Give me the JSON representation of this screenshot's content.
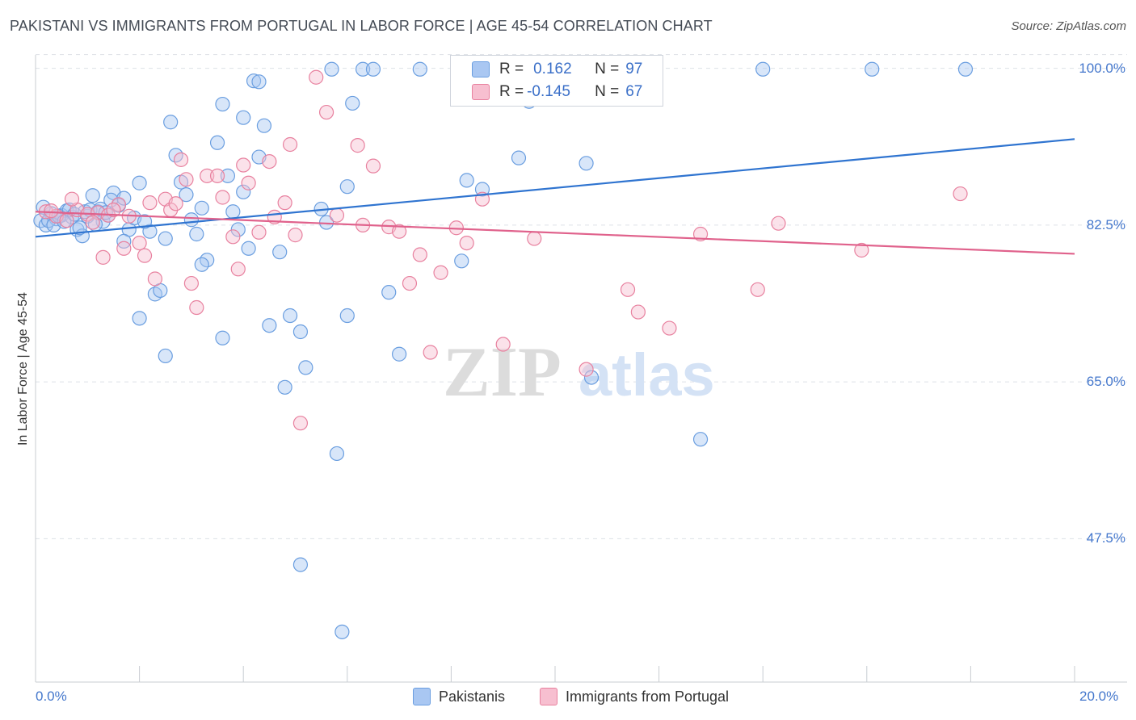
{
  "title": "PAKISTANI VS IMMIGRANTS FROM PORTUGAL IN LABOR FORCE | AGE 45-54 CORRELATION CHART",
  "source": "Source: ZipAtlas.com",
  "watermark": {
    "zip": "ZIP",
    "atlas": "atlas"
  },
  "legend": {
    "r_label": "R =",
    "n_label": "N =",
    "rows": [
      {
        "r": "0.162",
        "n": "97",
        "color": "#a9c7f2",
        "stroke": "#6a9ee0"
      },
      {
        "r": "-0.145",
        "n": "67",
        "color": "#f7bfd0",
        "stroke": "#e8819f"
      }
    ]
  },
  "chart_data": {
    "type": "scatter",
    "title": "PAKISTANI VS IMMIGRANTS FROM PORTUGAL IN LABOR FORCE | AGE 45-54 CORRELATION CHART",
    "xlabel": "",
    "ylabel": "In Labor Force | Age 45-54",
    "xlim": [
      0,
      20
    ],
    "ylim": [
      31.5,
      101.5
    ],
    "x_tick_labels": [
      "0.0%",
      "20.0%"
    ],
    "y_ticks": [
      100,
      82.5,
      65,
      47.5
    ],
    "y_tick_labels": [
      "100.0%",
      "82.5%",
      "65.0%",
      "47.5%"
    ],
    "grid": true,
    "legend_position": "top-center",
    "series": [
      {
        "name": "Pakistanis",
        "color": "#6a9ee0",
        "fill": "#a9c7f2",
        "trend": {
          "x": [
            0,
            20
          ],
          "y": [
            81.2,
            92.1
          ]
        },
        "points": [
          [
            0.1,
            83.0
          ],
          [
            0.2,
            82.5
          ],
          [
            0.3,
            83.8
          ],
          [
            0.4,
            83.2
          ],
          [
            0.5,
            83.6
          ],
          [
            0.6,
            84.1
          ],
          [
            0.7,
            83.4
          ],
          [
            0.8,
            82.0
          ],
          [
            0.9,
            81.3
          ],
          [
            1.0,
            83.5
          ],
          [
            1.1,
            85.8
          ],
          [
            1.2,
            84.0
          ],
          [
            1.3,
            82.9
          ],
          [
            1.4,
            83.6
          ],
          [
            1.5,
            86.1
          ],
          [
            1.6,
            84.7
          ],
          [
            1.7,
            85.5
          ],
          [
            1.8,
            82.0
          ],
          [
            1.9,
            83.3
          ],
          [
            2.0,
            87.2
          ],
          [
            2.2,
            81.8
          ],
          [
            2.3,
            74.8
          ],
          [
            2.4,
            75.2
          ],
          [
            2.5,
            81.0
          ],
          [
            2.6,
            94.0
          ],
          [
            2.7,
            90.3
          ],
          [
            2.8,
            87.3
          ],
          [
            2.9,
            85.9
          ],
          [
            3.0,
            83.1
          ],
          [
            3.1,
            81.5
          ],
          [
            3.2,
            84.4
          ],
          [
            3.3,
            78.6
          ],
          [
            3.5,
            91.7
          ],
          [
            3.6,
            69.9
          ],
          [
            3.8,
            84.0
          ],
          [
            3.9,
            82.0
          ],
          [
            4.0,
            94.5
          ],
          [
            4.1,
            79.9
          ],
          [
            4.2,
            98.6
          ],
          [
            4.3,
            98.5
          ],
          [
            4.4,
            93.6
          ],
          [
            4.5,
            71.3
          ],
          [
            4.7,
            79.5
          ],
          [
            4.8,
            64.4
          ],
          [
            4.9,
            72.4
          ],
          [
            5.1,
            70.6
          ],
          [
            5.2,
            66.6
          ],
          [
            5.5,
            84.3
          ],
          [
            5.6,
            82.8
          ],
          [
            5.8,
            57.0
          ],
          [
            6.0,
            86.8
          ],
          [
            6.1,
            96.1
          ],
          [
            6.3,
            99.9
          ],
          [
            6.5,
            99.9
          ],
          [
            6.8,
            75.0
          ],
          [
            7.0,
            68.1
          ],
          [
            7.4,
            99.9
          ],
          [
            8.2,
            78.5
          ],
          [
            8.3,
            87.5
          ],
          [
            8.6,
            86.5
          ],
          [
            9.3,
            90.0
          ],
          [
            9.5,
            96.3
          ],
          [
            10.0,
            99.9
          ],
          [
            10.6,
            89.4
          ],
          [
            11.2,
            99.9
          ],
          [
            14.0,
            99.9
          ],
          [
            16.1,
            99.9
          ],
          [
            17.9,
            99.9
          ],
          [
            5.1,
            44.6
          ],
          [
            5.9,
            37.1
          ],
          [
            10.7,
            65.5
          ],
          [
            12.8,
            58.6
          ],
          [
            2.0,
            72.1
          ],
          [
            2.5,
            67.9
          ],
          [
            3.2,
            78.1
          ],
          [
            4.0,
            86.2
          ],
          [
            0.15,
            84.5
          ],
          [
            0.25,
            83.0
          ],
          [
            0.35,
            82.5
          ],
          [
            0.45,
            83.5
          ],
          [
            0.55,
            82.9
          ],
          [
            0.65,
            84.2
          ],
          [
            0.75,
            83.7
          ],
          [
            0.85,
            82.2
          ],
          [
            0.95,
            84.0
          ],
          [
            1.05,
            84.2
          ],
          [
            1.15,
            82.6
          ],
          [
            1.25,
            84.3
          ],
          [
            1.35,
            83.9
          ],
          [
            1.45,
            85.3
          ],
          [
            3.6,
            96.0
          ],
          [
            3.7,
            88.0
          ],
          [
            5.7,
            99.9
          ],
          [
            6.0,
            72.4
          ],
          [
            1.7,
            80.7
          ],
          [
            2.1,
            82.9
          ],
          [
            4.3,
            90.1
          ]
        ]
      },
      {
        "name": "Immigrants from Portugal",
        "color": "#e8819f",
        "fill": "#f7bfd0",
        "trend": {
          "x": [
            0,
            20
          ],
          "y": [
            84.0,
            79.3
          ]
        },
        "points": [
          [
            0.2,
            84.0
          ],
          [
            0.4,
            83.5
          ],
          [
            0.6,
            83.0
          ],
          [
            0.8,
            84.2
          ],
          [
            1.0,
            83.7
          ],
          [
            1.2,
            83.9
          ],
          [
            1.3,
            78.9
          ],
          [
            1.4,
            83.6
          ],
          [
            1.6,
            84.8
          ],
          [
            1.7,
            79.9
          ],
          [
            1.8,
            83.5
          ],
          [
            2.0,
            80.5
          ],
          [
            2.1,
            79.1
          ],
          [
            2.2,
            85.0
          ],
          [
            2.3,
            76.5
          ],
          [
            2.5,
            85.4
          ],
          [
            2.6,
            84.2
          ],
          [
            2.8,
            89.8
          ],
          [
            2.9,
            87.6
          ],
          [
            3.1,
            73.3
          ],
          [
            3.3,
            88.0
          ],
          [
            3.5,
            88.0
          ],
          [
            3.6,
            85.6
          ],
          [
            3.8,
            81.2
          ],
          [
            3.9,
            77.6
          ],
          [
            4.0,
            89.2
          ],
          [
            4.1,
            87.2
          ],
          [
            4.3,
            81.7
          ],
          [
            4.5,
            89.6
          ],
          [
            4.6,
            83.4
          ],
          [
            4.8,
            85.0
          ],
          [
            4.9,
            91.5
          ],
          [
            5.0,
            81.4
          ],
          [
            5.1,
            60.4
          ],
          [
            5.4,
            99.0
          ],
          [
            5.6,
            95.1
          ],
          [
            5.8,
            83.6
          ],
          [
            6.2,
            91.4
          ],
          [
            6.3,
            82.5
          ],
          [
            6.5,
            89.1
          ],
          [
            6.8,
            82.3
          ],
          [
            7.0,
            81.8
          ],
          [
            7.2,
            76.0
          ],
          [
            7.4,
            79.2
          ],
          [
            7.6,
            68.3
          ],
          [
            7.8,
            77.2
          ],
          [
            8.1,
            82.2
          ],
          [
            8.3,
            80.5
          ],
          [
            8.6,
            85.4
          ],
          [
            9.0,
            69.2
          ],
          [
            9.6,
            81.0
          ],
          [
            10.0,
            99.9
          ],
          [
            10.6,
            66.4
          ],
          [
            11.4,
            75.3
          ],
          [
            11.6,
            72.8
          ],
          [
            12.2,
            71.0
          ],
          [
            12.8,
            81.5
          ],
          [
            13.9,
            75.3
          ],
          [
            14.3,
            82.7
          ],
          [
            15.9,
            79.7
          ],
          [
            17.8,
            86.0
          ],
          [
            0.3,
            84.1
          ],
          [
            0.7,
            85.4
          ],
          [
            1.1,
            82.8
          ],
          [
            1.5,
            84.2
          ],
          [
            2.7,
            84.9
          ],
          [
            3.0,
            76.0
          ]
        ]
      }
    ]
  },
  "bottom_legend": {
    "items": [
      "Pakistanis",
      "Immigrants from Portugal"
    ]
  }
}
